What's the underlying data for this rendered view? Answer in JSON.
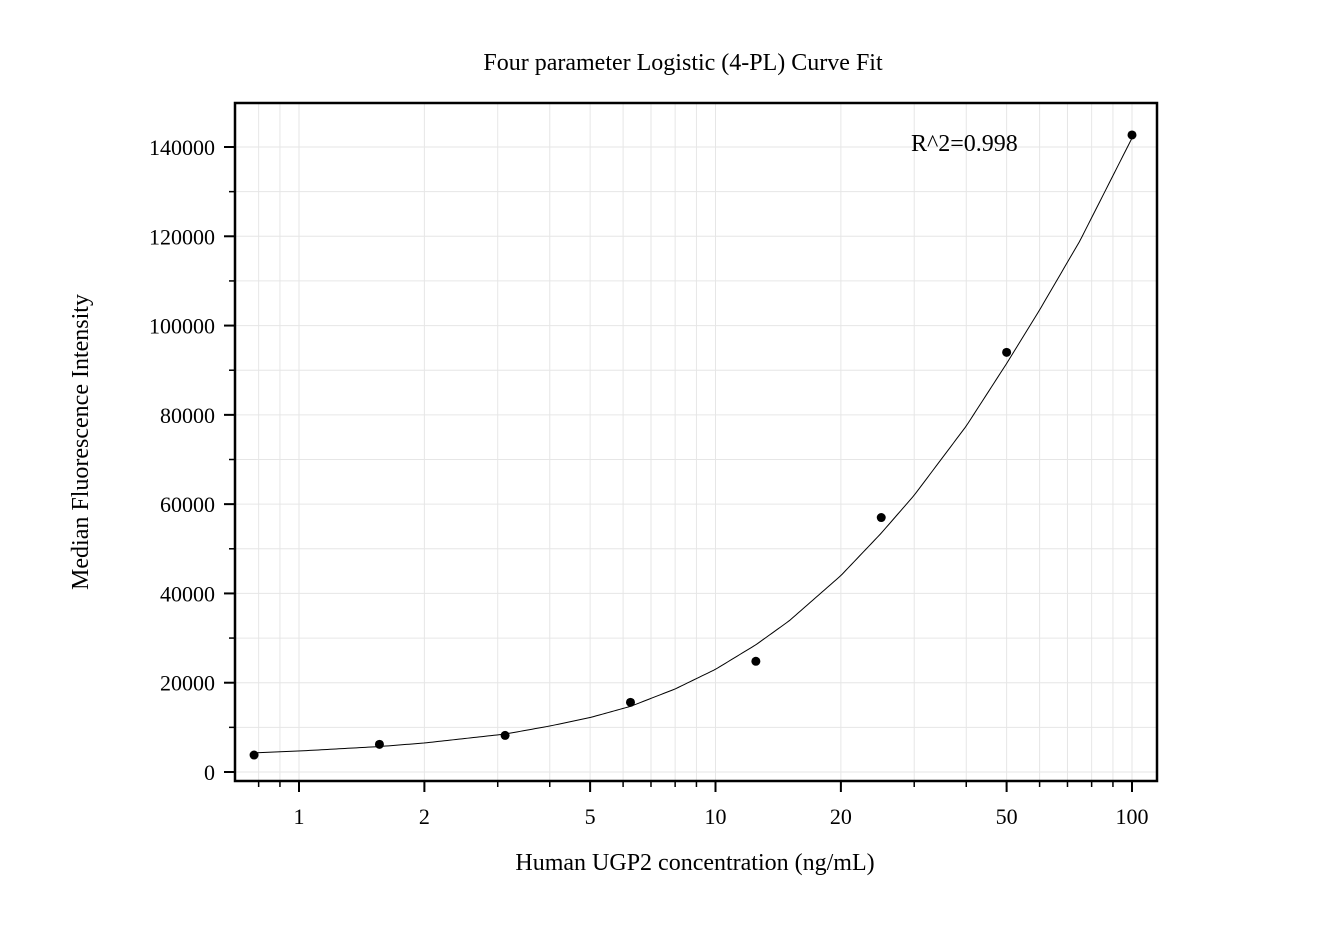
{
  "chart_data": {
    "type": "scatter",
    "title": "Four parameter Logistic (4-PL) Curve Fit",
    "xlabel": "Human UGP2 concentration (ng/mL)",
    "ylabel": "Median Fluorescence Intensity",
    "x_scale": "log",
    "xlim": [
      0.7,
      110
    ],
    "ylim": [
      -2000,
      150000
    ],
    "grid": true,
    "x_ticks": [
      1,
      2,
      5,
      10,
      20,
      50,
      100
    ],
    "x_tick_labels": [
      "1",
      "2",
      "5",
      "10",
      "20",
      "50",
      "100"
    ],
    "y_ticks": [
      0,
      20000,
      40000,
      60000,
      80000,
      100000,
      120000,
      140000
    ],
    "y_tick_labels": [
      "0",
      "20000",
      "40000",
      "60000",
      "80000",
      "100000",
      "120000",
      "140000"
    ],
    "annotation": "R^2=0.998",
    "series": [
      {
        "type": "scatter",
        "x": [
          0.78,
          1.56,
          3.125,
          6.25,
          12.5,
          25,
          50,
          100
        ],
        "y": [
          3800,
          6200,
          8200,
          15600,
          24800,
          57000,
          94000,
          142700
        ]
      },
      {
        "type": "line",
        "x": [
          0.78,
          1,
          1.56,
          2,
          3.125,
          4,
          5,
          6.25,
          8,
          10,
          12.5,
          15,
          20,
          25,
          30,
          40,
          50,
          60,
          75,
          100
        ],
        "y": [
          4300,
          4700,
          5700,
          6500,
          8500,
          10300,
          12200,
          14700,
          18600,
          23000,
          28500,
          33800,
          44000,
          53500,
          62000,
          77500,
          91500,
          103500,
          119000,
          142000
        ]
      }
    ]
  }
}
